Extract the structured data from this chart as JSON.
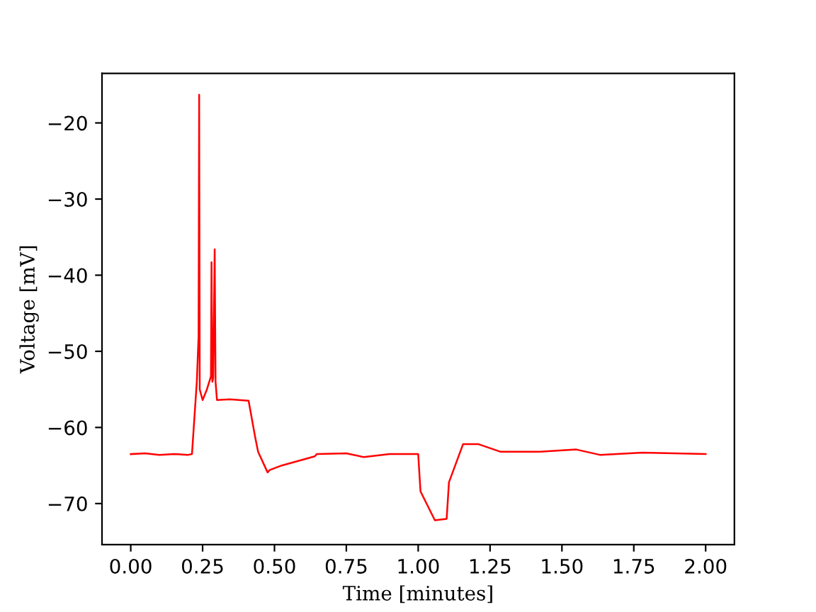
{
  "chart_data": {
    "type": "line",
    "xlabel": "Time [minutes]",
    "ylabel": "Voltage [mV]",
    "x": [
      0,
      0.05,
      0.1,
      0.15,
      0.2,
      0.213,
      0.23,
      0.236,
      0.238,
      0.24,
      0.25,
      0.265,
      0.279,
      0.281,
      0.284,
      0.287,
      0.292,
      0.295,
      0.3,
      0.345,
      0.41,
      0.433,
      0.443,
      0.476,
      0.483,
      0.525,
      0.64,
      0.647,
      0.75,
      0.811,
      0.9,
      1.0,
      1.008,
      1.058,
      1.099,
      1.107,
      1.156,
      1.21,
      1.287,
      1.419,
      1.55,
      1.632,
      1.78,
      2.0
    ],
    "series": [
      {
        "color": "#ff0000",
        "values": [
          -63.5,
          -63.4,
          -63.6,
          -63.5,
          -63.6,
          -63.5,
          -53.9,
          -48,
          -16.3,
          -55,
          -56.4,
          -55,
          -53.3,
          -38.3,
          -54,
          -53.5,
          -36.6,
          -54,
          -56.4,
          -56.3,
          -56.5,
          -61.3,
          -63.2,
          -65.9,
          -65.6,
          -65.0,
          -63.8,
          -63.5,
          -63.4,
          -63.9,
          -63.5,
          -63.5,
          -68.4,
          -72.2,
          -72.0,
          -67.2,
          -62.2,
          -62.2,
          -63.2,
          -63.2,
          -62.9,
          -63.6,
          -63.3,
          -63.5
        ]
      }
    ],
    "xlim": [
      -0.1,
      2.1
    ],
    "ylim": [
      -75.4,
      -13.5
    ],
    "xticks": [
      {
        "value": 0,
        "label": "0.00"
      },
      {
        "value": 0.25,
        "label": "0.25"
      },
      {
        "value": 0.5,
        "label": "0.50"
      },
      {
        "value": 0.75,
        "label": "0.75"
      },
      {
        "value": 1,
        "label": "1.00"
      },
      {
        "value": 1.25,
        "label": "1.25"
      },
      {
        "value": 1.5,
        "label": "1.50"
      },
      {
        "value": 1.75,
        "label": "1.75"
      },
      {
        "value": 2,
        "label": "2.00"
      }
    ],
    "yticks": [
      {
        "value": -70,
        "label": "−70"
      },
      {
        "value": -60,
        "label": "−60"
      },
      {
        "value": -50,
        "label": "−50"
      },
      {
        "value": -40,
        "label": "−40"
      },
      {
        "value": -30,
        "label": "−30"
      },
      {
        "value": -20,
        "label": "−20"
      }
    ],
    "grid": false,
    "marker": "none",
    "line_style": "solid"
  }
}
